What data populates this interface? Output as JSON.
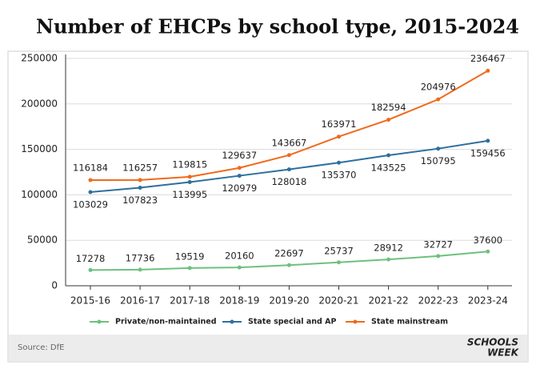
{
  "chart_data": {
    "type": "line",
    "title": "Number of EHCPs by school type, 2015-2024",
    "categories": [
      "2015-16",
      "2016-17",
      "2017-18",
      "2018-19",
      "2019-20",
      "2020-21",
      "2021-22",
      "2022-23",
      "2023-24"
    ],
    "series": [
      {
        "name": "Private/non-maintained",
        "color": "#6dc17e",
        "values": [
          17278,
          17736,
          19519,
          20160,
          22697,
          25737,
          28912,
          32727,
          37600
        ]
      },
      {
        "name": "State special and AP",
        "color": "#2e6f9e",
        "values": [
          103029,
          107823,
          113995,
          120979,
          128018,
          135370,
          143525,
          150795,
          159456
        ]
      },
      {
        "name": "State mainstream",
        "color": "#ef6a1c",
        "values": [
          116184,
          116257,
          119815,
          129637,
          143667,
          163971,
          182594,
          204976,
          236467
        ]
      }
    ],
    "ylim": [
      0,
      250000
    ],
    "yticks": [
      0,
      50000,
      100000,
      150000,
      200000,
      250000
    ],
    "grid": true,
    "legend": "bottom"
  },
  "footer": {
    "source": "Source: DfE",
    "logo": [
      "SCHOOLS",
      "WEEK"
    ]
  }
}
